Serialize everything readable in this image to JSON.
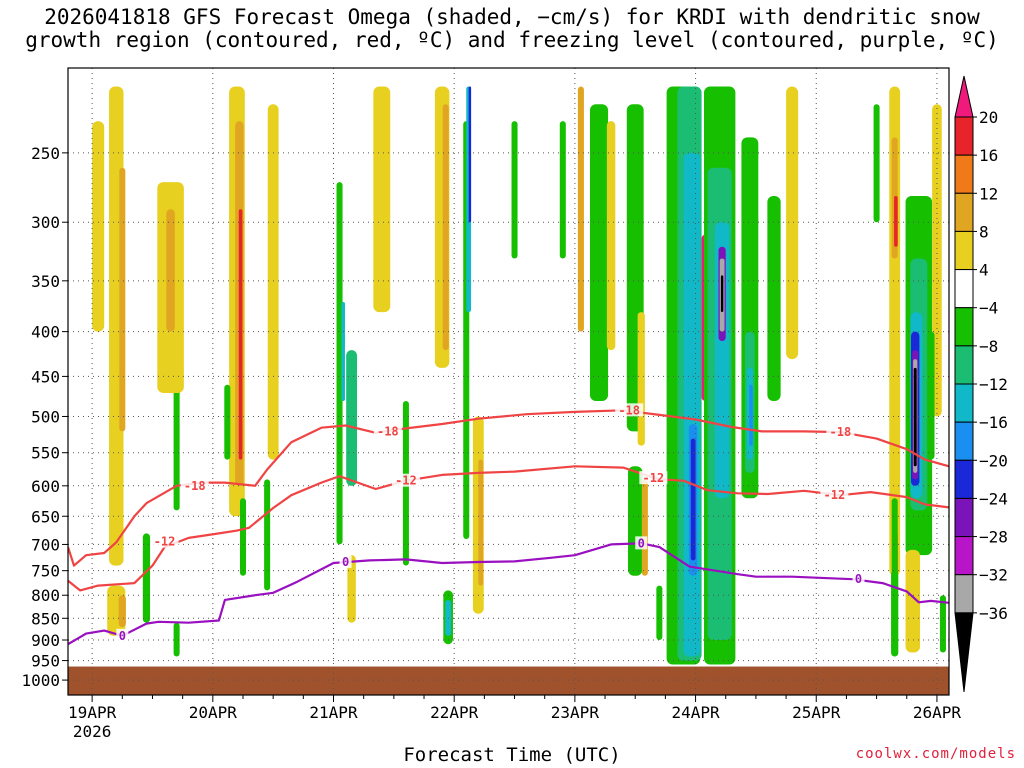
{
  "chart_data": {
    "type": "heatmap",
    "title_line1": "2026041818 GFS Forecast Omega (shaded, −cm/s) for KRDI with dendritic snow",
    "title_line2": "growth region (contoured, red, ºC) and freezing level (contoured, purple, ºC)",
    "xlabel": "Forecast Time (UTC)",
    "x_ticks": [
      "19APR",
      "20APR",
      "21APR",
      "22APR",
      "23APR",
      "24APR",
      "25APR",
      "26APR"
    ],
    "x_tick_sublabel": "2026",
    "x_range_days": [
      -0.2,
      7.1
    ],
    "y_ticks": [
      250,
      300,
      350,
      400,
      450,
      500,
      550,
      600,
      650,
      700,
      750,
      800,
      850,
      900,
      950,
      1000
    ],
    "y_range_hpa": [
      200,
      1040
    ],
    "y_scale": "log-pressure",
    "colorbar_labels": [
      "20",
      "16",
      "12",
      "8",
      "4",
      "−4",
      "−8",
      "−12",
      "−16",
      "−20",
      "−24",
      "−28",
      "−32",
      "−36"
    ],
    "colorbar_colors": [
      "#f0197c",
      "#e8242b",
      "#f07a1a",
      "#e0a622",
      "#e8d020",
      "#ffffff",
      "#16c000",
      "#1bbd73",
      "#10b8c8",
      "#1a8ff0",
      "#1b28d8",
      "#7a13b8",
      "#b815c8",
      "#a8a8a8",
      "#000000"
    ],
    "contours": [
      {
        "name": "-18 C",
        "label": "-18",
        "color": "#f04444",
        "points": [
          [
            -0.2,
            705
          ],
          [
            -0.15,
            740
          ],
          [
            -0.05,
            720
          ],
          [
            0.1,
            716
          ],
          [
            0.2,
            696
          ],
          [
            0.35,
            650
          ],
          [
            0.45,
            628
          ],
          [
            0.7,
            600
          ],
          [
            0.9,
            595
          ],
          [
            1.1,
            595
          ],
          [
            1.35,
            600
          ],
          [
            1.45,
            575
          ],
          [
            1.65,
            535
          ],
          [
            1.9,
            515
          ],
          [
            2.1,
            512
          ],
          [
            2.35,
            522
          ],
          [
            2.5,
            518
          ],
          [
            2.9,
            510
          ],
          [
            3.2,
            503
          ],
          [
            3.6,
            497
          ],
          [
            4.0,
            494
          ],
          [
            4.4,
            492
          ],
          [
            4.7,
            498
          ],
          [
            5.0,
            504
          ],
          [
            5.3,
            514
          ],
          [
            5.55,
            520
          ],
          [
            5.9,
            520
          ],
          [
            6.2,
            521
          ],
          [
            6.5,
            530
          ],
          [
            6.75,
            545
          ],
          [
            6.9,
            560
          ],
          [
            7.1,
            570
          ]
        ]
      },
      {
        "name": "-12 C",
        "label": "-12",
        "color": "#f04444",
        "points": [
          [
            -0.2,
            770
          ],
          [
            -0.1,
            790
          ],
          [
            0.05,
            780
          ],
          [
            0.35,
            775
          ],
          [
            0.5,
            740
          ],
          [
            0.6,
            705
          ],
          [
            0.8,
            688
          ],
          [
            1.05,
            680
          ],
          [
            1.2,
            675
          ],
          [
            1.3,
            670
          ],
          [
            1.5,
            636
          ],
          [
            1.65,
            615
          ],
          [
            1.9,
            595
          ],
          [
            2.05,
            585
          ],
          [
            2.35,
            605
          ],
          [
            2.6,
            592
          ],
          [
            2.9,
            583
          ],
          [
            3.2,
            580
          ],
          [
            3.5,
            578
          ],
          [
            4.0,
            570
          ],
          [
            4.4,
            572
          ],
          [
            4.7,
            590
          ],
          [
            4.9,
            592
          ],
          [
            5.1,
            607
          ],
          [
            5.35,
            612
          ],
          [
            5.6,
            613
          ],
          [
            5.9,
            608
          ],
          [
            6.2,
            615
          ],
          [
            6.45,
            610
          ],
          [
            6.75,
            618
          ],
          [
            6.9,
            630
          ],
          [
            7.1,
            635
          ]
        ]
      },
      {
        "name": "0 C freezing level",
        "label": "0",
        "color": "#9a10c0",
        "points": [
          [
            -0.2,
            910
          ],
          [
            -0.05,
            885
          ],
          [
            0.1,
            878
          ],
          [
            0.25,
            890
          ],
          [
            0.45,
            862
          ],
          [
            0.55,
            858
          ],
          [
            0.8,
            860
          ],
          [
            1.05,
            855
          ],
          [
            1.1,
            810
          ],
          [
            1.35,
            800
          ],
          [
            1.5,
            795
          ],
          [
            1.7,
            772
          ],
          [
            2.0,
            735
          ],
          [
            2.3,
            730
          ],
          [
            2.6,
            728
          ],
          [
            2.9,
            735
          ],
          [
            3.2,
            733
          ],
          [
            3.5,
            732
          ],
          [
            3.8,
            725
          ],
          [
            4.0,
            720
          ],
          [
            4.3,
            700
          ],
          [
            4.55,
            698
          ],
          [
            4.7,
            705
          ],
          [
            4.95,
            742
          ],
          [
            5.35,
            757
          ],
          [
            5.5,
            762
          ],
          [
            5.8,
            762
          ],
          [
            6.1,
            765
          ],
          [
            6.3,
            767
          ],
          [
            6.55,
            775
          ],
          [
            6.75,
            792
          ],
          [
            6.85,
            815
          ],
          [
            6.95,
            812
          ],
          [
            7.1,
            816
          ]
        ]
      }
    ],
    "contour_label_positions": [
      {
        "label": "-18",
        "color": "#f04444",
        "x": 0.85,
        "p": 600
      },
      {
        "label": "-18",
        "color": "#f04444",
        "x": 2.45,
        "p": 520
      },
      {
        "label": "-18",
        "color": "#f04444",
        "x": 4.45,
        "p": 492
      },
      {
        "label": "-18",
        "color": "#f04444",
        "x": 6.2,
        "p": 521
      },
      {
        "label": "-12",
        "color": "#f04444",
        "x": 0.6,
        "p": 695
      },
      {
        "label": "-12",
        "color": "#f04444",
        "x": 2.6,
        "p": 592
      },
      {
        "label": "-12",
        "color": "#f04444",
        "x": 4.65,
        "p": 588
      },
      {
        "label": "-12",
        "color": "#f04444",
        "x": 6.15,
        "p": 615
      },
      {
        "label": "0",
        "color": "#9a10c0",
        "x": 0.25,
        "p": 890
      },
      {
        "label": "0",
        "color": "#9a10c0",
        "x": 2.1,
        "p": 733
      },
      {
        "label": "0",
        "color": "#9a10c0",
        "x": 4.55,
        "p": 698
      },
      {
        "label": "0",
        "color": "#9a10c0",
        "x": 6.35,
        "p": 767
      }
    ],
    "omega_features": [
      {
        "x": 0.2,
        "p_top": 210,
        "p_bot": 740,
        "w": 0.12,
        "color": "#e8d020"
      },
      {
        "x": 0.25,
        "p_top": 260,
        "p_bot": 520,
        "w": 0.05,
        "color": "#e0a622"
      },
      {
        "x": 0.05,
        "p_top": 230,
        "p_bot": 400,
        "w": 0.1,
        "color": "#e8d020"
      },
      {
        "x": 0.2,
        "p_top": 780,
        "p_bot": 890,
        "w": 0.15,
        "color": "#e8d020"
      },
      {
        "x": 0.25,
        "p_top": 800,
        "p_bot": 870,
        "w": 0.06,
        "color": "#e0a622"
      },
      {
        "x": 0.45,
        "p_top": 680,
        "p_bot": 860,
        "w": 0.06,
        "color": "#16c000"
      },
      {
        "x": 0.7,
        "p_top": 420,
        "p_bot": 640,
        "w": 0.05,
        "color": "#16c000"
      },
      {
        "x": 0.65,
        "p_top": 270,
        "p_bot": 470,
        "w": 0.22,
        "color": "#e8d020"
      },
      {
        "x": 0.65,
        "p_top": 290,
        "p_bot": 400,
        "w": 0.07,
        "color": "#e0a622"
      },
      {
        "x": 0.7,
        "p_top": 860,
        "p_bot": 940,
        "w": 0.05,
        "color": "#16c000"
      },
      {
        "x": 1.2,
        "p_top": 210,
        "p_bot": 650,
        "w": 0.13,
        "color": "#e8d020"
      },
      {
        "x": 1.22,
        "p_top": 230,
        "p_bot": 600,
        "w": 0.07,
        "color": "#e0a622"
      },
      {
        "x": 1.23,
        "p_top": 290,
        "p_bot": 560,
        "w": 0.03,
        "color": "#e8242b"
      },
      {
        "x": 1.12,
        "p_top": 460,
        "p_bot": 560,
        "w": 0.05,
        "color": "#16c000"
      },
      {
        "x": 1.25,
        "p_top": 620,
        "p_bot": 760,
        "w": 0.05,
        "color": "#16c000"
      },
      {
        "x": 1.5,
        "p_top": 220,
        "p_bot": 560,
        "w": 0.09,
        "color": "#e8d020"
      },
      {
        "x": 1.45,
        "p_top": 590,
        "p_bot": 790,
        "w": 0.05,
        "color": "#16c000"
      },
      {
        "x": 2.05,
        "p_top": 270,
        "p_bot": 700,
        "w": 0.05,
        "color": "#16c000"
      },
      {
        "x": 2.08,
        "p_top": 370,
        "p_bot": 480,
        "w": 0.03,
        "color": "#10b8c8"
      },
      {
        "x": 2.15,
        "p_top": 420,
        "p_bot": 600,
        "w": 0.09,
        "color": "#1bbd73"
      },
      {
        "x": 2.15,
        "p_top": 720,
        "p_bot": 860,
        "w": 0.07,
        "color": "#e8d020"
      },
      {
        "x": 2.4,
        "p_top": 210,
        "p_bot": 380,
        "w": 0.14,
        "color": "#e8d020"
      },
      {
        "x": 2.6,
        "p_top": 480,
        "p_bot": 740,
        "w": 0.05,
        "color": "#16c000"
      },
      {
        "x": 2.9,
        "p_top": 210,
        "p_bot": 440,
        "w": 0.12,
        "color": "#e8d020"
      },
      {
        "x": 2.93,
        "p_top": 220,
        "p_bot": 420,
        "w": 0.05,
        "color": "#e0a622"
      },
      {
        "x": 3.1,
        "p_top": 230,
        "p_bot": 690,
        "w": 0.05,
        "color": "#16c000"
      },
      {
        "x": 3.12,
        "p_top": 210,
        "p_bot": 380,
        "w": 0.04,
        "color": "#10b8c8"
      },
      {
        "x": 3.13,
        "p_top": 210,
        "p_bot": 300,
        "w": 0.02,
        "color": "#1b28d8"
      },
      {
        "x": 3.2,
        "p_top": 500,
        "p_bot": 840,
        "w": 0.09,
        "color": "#e8d020"
      },
      {
        "x": 3.22,
        "p_top": 560,
        "p_bot": 780,
        "w": 0.04,
        "color": "#e0a622"
      },
      {
        "x": 2.95,
        "p_top": 790,
        "p_bot": 910,
        "w": 0.08,
        "color": "#16c000"
      },
      {
        "x": 2.95,
        "p_top": 810,
        "p_bot": 890,
        "w": 0.05,
        "color": "#10b8c8"
      },
      {
        "x": 3.5,
        "p_top": 230,
        "p_bot": 330,
        "w": 0.05,
        "color": "#16c000"
      },
      {
        "x": 3.9,
        "p_top": 230,
        "p_bot": 330,
        "w": 0.05,
        "color": "#16c000"
      },
      {
        "x": 4.05,
        "p_top": 210,
        "p_bot": 400,
        "w": 0.05,
        "color": "#e0a622"
      },
      {
        "x": 4.2,
        "p_top": 220,
        "p_bot": 480,
        "w": 0.15,
        "color": "#16c000"
      },
      {
        "x": 4.3,
        "p_top": 230,
        "p_bot": 420,
        "w": 0.07,
        "color": "#e8d020"
      },
      {
        "x": 4.5,
        "p_top": 220,
        "p_bot": 520,
        "w": 0.14,
        "color": "#16c000"
      },
      {
        "x": 4.55,
        "p_top": 380,
        "p_bot": 540,
        "w": 0.06,
        "color": "#e8d020"
      },
      {
        "x": 4.5,
        "p_top": 570,
        "p_bot": 760,
        "w": 0.12,
        "color": "#16c000"
      },
      {
        "x": 4.58,
        "p_top": 590,
        "p_bot": 760,
        "w": 0.05,
        "color": "#e0a622"
      },
      {
        "x": 4.7,
        "p_top": 780,
        "p_bot": 900,
        "w": 0.05,
        "color": "#16c000"
      },
      {
        "x": 4.9,
        "p_top": 210,
        "p_bot": 960,
        "w": 0.28,
        "color": "#16c000"
      },
      {
        "x": 4.95,
        "p_top": 210,
        "p_bot": 950,
        "w": 0.2,
        "color": "#1bbd73"
      },
      {
        "x": 4.97,
        "p_top": 250,
        "p_bot": 940,
        "w": 0.14,
        "color": "#10b8c8"
      },
      {
        "x": 4.98,
        "p_top": 510,
        "p_bot": 760,
        "w": 0.07,
        "color": "#1a8ff0"
      },
      {
        "x": 4.98,
        "p_top": 530,
        "p_bot": 730,
        "w": 0.04,
        "color": "#1b28d8"
      },
      {
        "x": 5.08,
        "p_top": 310,
        "p_bot": 480,
        "w": 0.06,
        "color": "#f0197c"
      },
      {
        "x": 5.2,
        "p_top": 210,
        "p_bot": 960,
        "w": 0.26,
        "color": "#16c000"
      },
      {
        "x": 5.2,
        "p_top": 260,
        "p_bot": 900,
        "w": 0.2,
        "color": "#1bbd73"
      },
      {
        "x": 5.22,
        "p_top": 300,
        "p_bot": 620,
        "w": 0.12,
        "color": "#10b8c8"
      },
      {
        "x": 5.22,
        "p_top": 320,
        "p_bot": 410,
        "w": 0.06,
        "color": "#7a13b8"
      },
      {
        "x": 5.22,
        "p_top": 330,
        "p_bot": 400,
        "w": 0.04,
        "color": "#a8a8a8"
      },
      {
        "x": 5.22,
        "p_top": 345,
        "p_bot": 380,
        "w": 0.02,
        "color": "#000000"
      },
      {
        "x": 5.45,
        "p_top": 240,
        "p_bot": 620,
        "w": 0.14,
        "color": "#16c000"
      },
      {
        "x": 5.45,
        "p_top": 400,
        "p_bot": 580,
        "w": 0.08,
        "color": "#1bbd73"
      },
      {
        "x": 5.45,
        "p_top": 440,
        "p_bot": 560,
        "w": 0.05,
        "color": "#10b8c8"
      },
      {
        "x": 5.46,
        "p_top": 460,
        "p_bot": 540,
        "w": 0.03,
        "color": "#1a8ff0"
      },
      {
        "x": 5.65,
        "p_top": 280,
        "p_bot": 480,
        "w": 0.11,
        "color": "#16c000"
      },
      {
        "x": 5.8,
        "p_top": 210,
        "p_bot": 430,
        "w": 0.1,
        "color": "#e8d020"
      },
      {
        "x": 6.5,
        "p_top": 220,
        "p_bot": 300,
        "w": 0.05,
        "color": "#16c000"
      },
      {
        "x": 6.65,
        "p_top": 210,
        "p_bot": 760,
        "w": 0.09,
        "color": "#e8d020"
      },
      {
        "x": 6.65,
        "p_top": 240,
        "p_bot": 330,
        "w": 0.05,
        "color": "#e0a622"
      },
      {
        "x": 6.66,
        "p_top": 280,
        "p_bot": 320,
        "w": 0.03,
        "color": "#e8242b"
      },
      {
        "x": 6.66,
        "p_top": 680,
        "p_bot": 770,
        "w": 0.03,
        "color": "#e8242b"
      },
      {
        "x": 6.85,
        "p_top": 280,
        "p_bot": 720,
        "w": 0.22,
        "color": "#16c000"
      },
      {
        "x": 6.85,
        "p_top": 330,
        "p_bot": 640,
        "w": 0.14,
        "color": "#1bbd73"
      },
      {
        "x": 6.83,
        "p_top": 380,
        "p_bot": 620,
        "w": 0.1,
        "color": "#10b8c8"
      },
      {
        "x": 6.82,
        "p_top": 400,
        "p_bot": 600,
        "w": 0.07,
        "color": "#1b28d8"
      },
      {
        "x": 6.82,
        "p_top": 420,
        "p_bot": 590,
        "w": 0.05,
        "color": "#7a13b8"
      },
      {
        "x": 6.82,
        "p_top": 430,
        "p_bot": 580,
        "w": 0.035,
        "color": "#a8a8a8"
      },
      {
        "x": 6.82,
        "p_top": 440,
        "p_bot": 570,
        "w": 0.025,
        "color": "#000000"
      },
      {
        "x": 6.65,
        "p_top": 620,
        "p_bot": 800,
        "w": 0.05,
        "color": "#16c000"
      },
      {
        "x": 6.8,
        "p_top": 710,
        "p_bot": 930,
        "w": 0.12,
        "color": "#e8d020"
      },
      {
        "x": 6.65,
        "p_top": 750,
        "p_bot": 940,
        "w": 0.06,
        "color": "#16c000"
      },
      {
        "x": 7.0,
        "p_top": 220,
        "p_bot": 500,
        "w": 0.08,
        "color": "#e8d020"
      },
      {
        "x": 6.95,
        "p_top": 400,
        "p_bot": 560,
        "w": 0.06,
        "color": "#16c000"
      },
      {
        "x": 7.05,
        "p_top": 800,
        "p_bot": 930,
        "w": 0.05,
        "color": "#16c000"
      }
    ],
    "surface_terrain": {
      "color": "#a0522d",
      "p_top_hpa": 965
    }
  },
  "credit": "coolwx.com/models"
}
